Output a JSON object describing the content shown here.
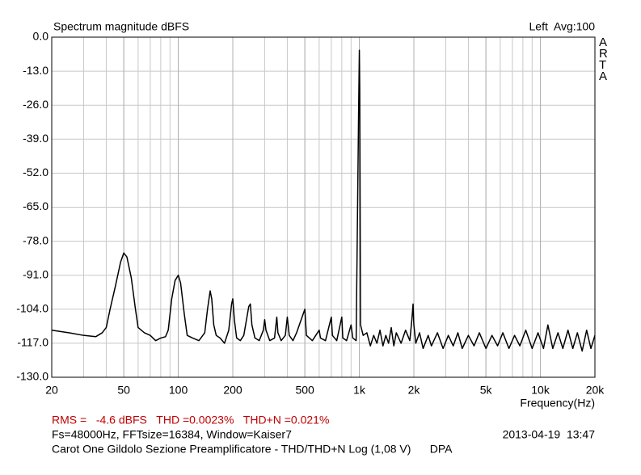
{
  "chart_data": {
    "type": "line",
    "title": "Spectrum magnitude dBFS",
    "channel_info": "Left  Avg:100",
    "brand": "ARTA",
    "xlabel": "Frequency(Hz)",
    "log_x": true,
    "grid": true,
    "color": "#000000",
    "xlim": [
      20,
      20000
    ],
    "ylim": [
      -130,
      0
    ],
    "xticks": [
      20,
      50,
      100,
      200,
      500,
      {
        "value": 1000,
        "label": "1k"
      },
      {
        "value": 2000,
        "label": "2k"
      },
      {
        "value": 5000,
        "label": "5k"
      },
      {
        "value": 10000,
        "label": "10k"
      },
      {
        "value": 20000,
        "label": "20k"
      }
    ],
    "yticks": [
      {
        "value": 0,
        "label": "0.0"
      },
      {
        "value": -13,
        "label": "-13.0"
      },
      {
        "value": -26,
        "label": "-26.0"
      },
      {
        "value": -39,
        "label": "-39.0"
      },
      {
        "value": -52,
        "label": "-52.0"
      },
      {
        "value": -65,
        "label": "-65.0"
      },
      {
        "value": -78,
        "label": "-78.0"
      },
      {
        "value": -91,
        "label": "-91.0"
      },
      {
        "value": -104,
        "label": "-104.0"
      },
      {
        "value": -117,
        "label": "-117.0"
      },
      {
        "value": -130,
        "label": "-130.0"
      }
    ],
    "x": [
      20,
      25,
      30,
      35,
      38,
      40,
      42,
      45,
      48,
      50,
      52,
      55,
      58,
      60,
      65,
      70,
      75,
      80,
      85,
      88,
      92,
      96,
      100,
      103,
      108,
      112,
      120,
      130,
      140,
      145,
      150,
      153,
      157,
      162,
      170,
      180,
      190,
      197,
      200,
      204,
      210,
      220,
      230,
      245,
      250,
      255,
      265,
      280,
      295,
      300,
      305,
      320,
      340,
      350,
      355,
      370,
      390,
      400,
      410,
      430,
      450,
      500,
      510,
      550,
      600,
      610,
      650,
      700,
      710,
      750,
      800,
      810,
      850,
      900,
      920,
      960,
      990,
      1000,
      1005,
      1015,
      1050,
      1100,
      1150,
      1200,
      1250,
      1300,
      1350,
      1400,
      1450,
      1500,
      1550,
      1600,
      1700,
      1800,
      1900,
      1950,
      1980,
      2000,
      2050,
      2150,
      2250,
      2400,
      2500,
      2700,
      2900,
      3100,
      3300,
      3500,
      3700,
      4000,
      4300,
      4600,
      5000,
      5400,
      5800,
      6200,
      6700,
      7200,
      7700,
      8300,
      9000,
      9700,
      10400,
      11000,
      11700,
      12500,
      13300,
      14200,
      15100,
      16000,
      17000,
      18000,
      19000,
      20000
    ],
    "values": [
      -112,
      -113,
      -114,
      -114.5,
      -113,
      -111,
      -104,
      -95,
      -86,
      -82.5,
      -84,
      -92,
      -104,
      -111,
      -113,
      -114,
      -116,
      -115,
      -114.5,
      -112,
      -100,
      -93,
      -91,
      -94,
      -106,
      -114,
      -115,
      -116,
      -113,
      -104,
      -97,
      -100,
      -110,
      -114,
      -115,
      -117,
      -112,
      -102,
      -100,
      -108,
      -115,
      -116,
      -114,
      -103,
      -102,
      -110,
      -115,
      -116,
      -112,
      -108,
      -112,
      -116,
      -115,
      -107,
      -113,
      -116,
      -114,
      -107,
      -114,
      -116,
      -113,
      -104,
      -114,
      -116,
      -112,
      -115,
      -116,
      -107,
      -114,
      -116,
      -107,
      -115,
      -116,
      -110,
      -115,
      -116,
      -30,
      -5,
      -20,
      -110,
      -114,
      -113,
      -118,
      -114,
      -117,
      -112,
      -118,
      -114,
      -117,
      -111,
      -118,
      -113,
      -117,
      -112,
      -116,
      -108,
      -102,
      -110,
      -117,
      -113,
      -119,
      -114,
      -118,
      -113,
      -119,
      -114,
      -118,
      -113,
      -119,
      -114,
      -118,
      -113,
      -119,
      -114,
      -118,
      -113,
      -119,
      -114,
      -118,
      -112,
      -119,
      -113,
      -119,
      -110,
      -119,
      -113,
      -119,
      -112,
      -119,
      -113,
      -120,
      -112,
      -119,
      -114
    ],
    "info": [
      {
        "text": "RMS =   -4.6 dBFS   THD =0.0023%   THD+N =0.021%",
        "color": "#c00000"
      },
      {
        "text": "Fs=48000Hz, FFTsize=16384, Window=Kaiser7",
        "color": "#000000"
      },
      {
        "text": "Carot One Gildolo Sezione Preamplificatore - THD/THD+N Log (1,08 V)      DPA",
        "color": "#000000"
      }
    ],
    "timestamp": "2013-04-19  13:47"
  }
}
